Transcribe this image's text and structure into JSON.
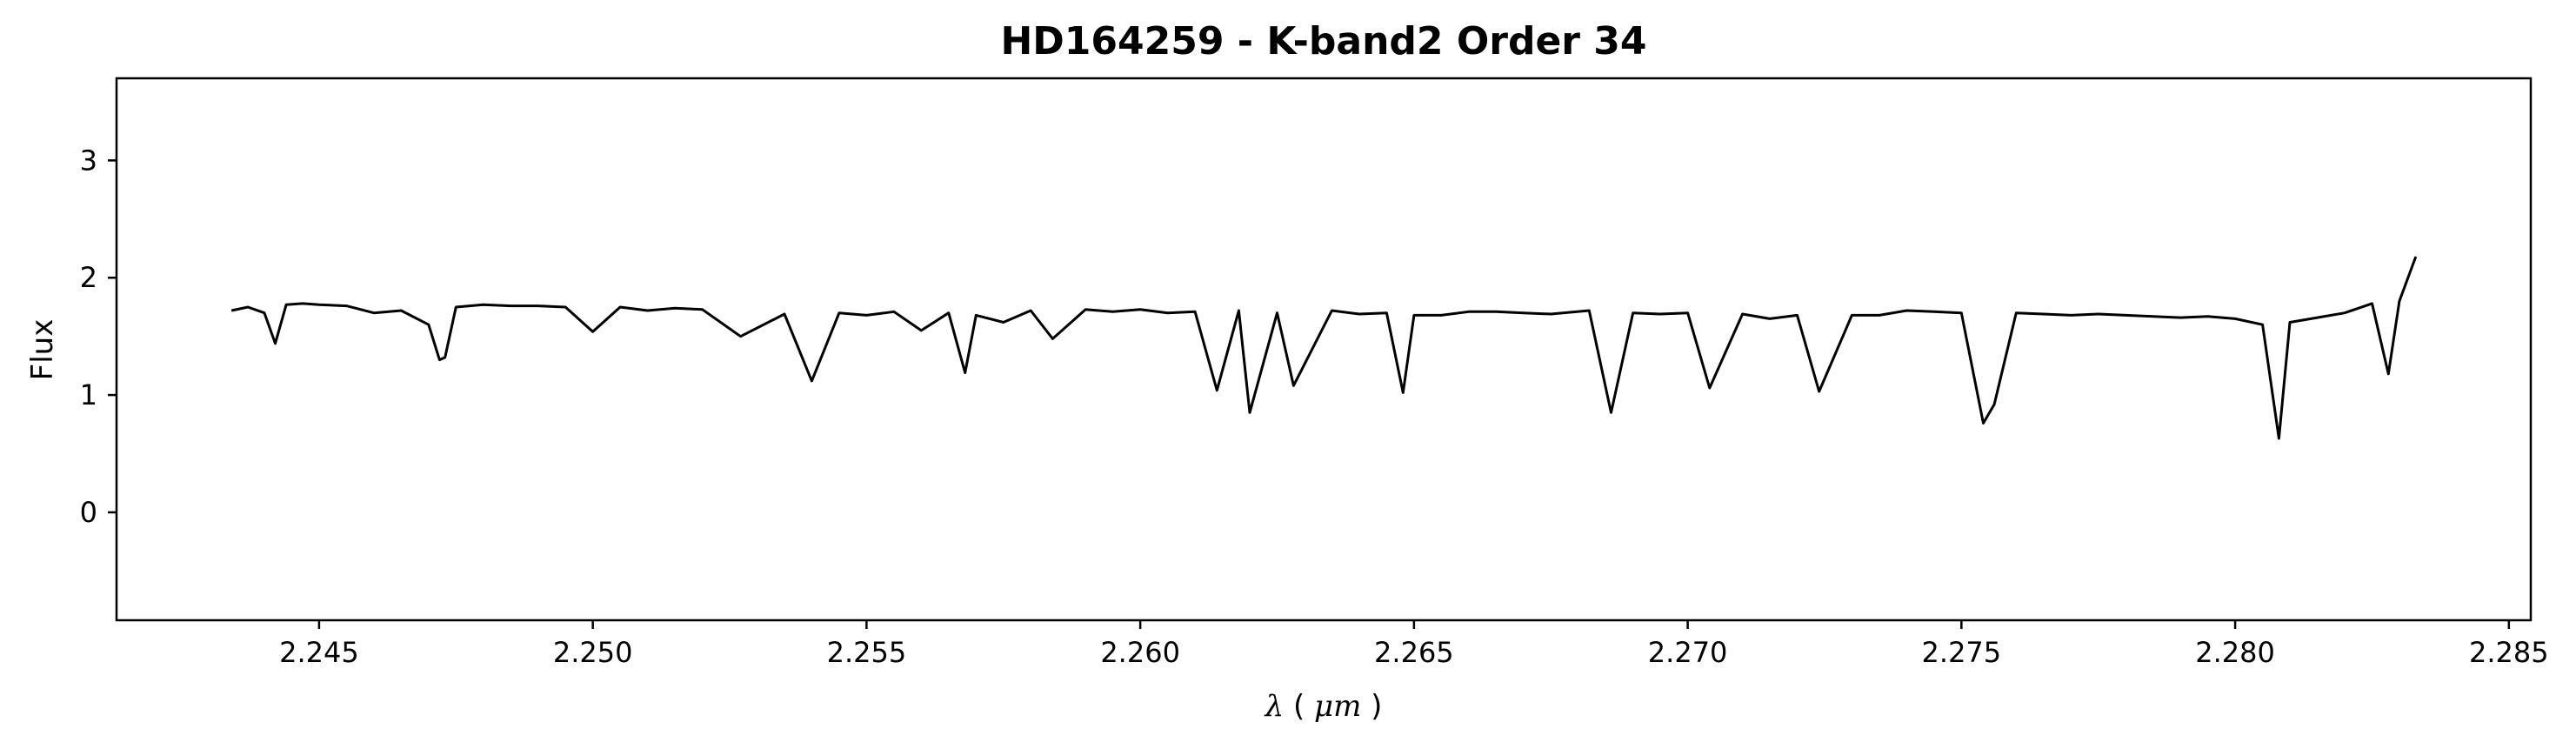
{
  "chart_data": {
    "type": "line",
    "title": "HD164259 - K-band2 Order 34",
    "xlabel": "λ (μm)",
    "xlabel_symbol": "λ",
    "xlabel_unit_open": "(",
    "xlabel_unit": "μm",
    "xlabel_unit_close": ")",
    "ylabel": "Flux",
    "xlim": [
      2.2413,
      2.2854
    ],
    "ylim": [
      -0.92,
      3.7
    ],
    "xticks": [
      2.245,
      2.25,
      2.255,
      2.26,
      2.265,
      2.27,
      2.275,
      2.28,
      2.285
    ],
    "xtick_labels": [
      "2.245",
      "2.250",
      "2.255",
      "2.260",
      "2.265",
      "2.270",
      "2.275",
      "2.280",
      "2.285"
    ],
    "yticks": [
      0,
      1,
      2,
      3
    ],
    "ytick_labels": [
      "0",
      "1",
      "2",
      "3"
    ],
    "grid": false,
    "line_color": "#000000",
    "series": [
      {
        "x": [
          2.2434,
          2.2437,
          2.244,
          2.2442,
          2.2444,
          2.2447,
          2.245,
          2.2455,
          2.246,
          2.2465,
          2.247,
          2.2472,
          2.2473,
          2.2475,
          2.248,
          2.2485,
          2.249,
          2.2495,
          2.25,
          2.2505,
          2.251,
          2.2515,
          2.252,
          2.2527,
          2.2535,
          2.254,
          2.2545,
          2.255,
          2.2555,
          2.256,
          2.2565,
          2.2568,
          2.257,
          2.2575,
          2.258,
          2.2584,
          2.259,
          2.2595,
          2.26,
          2.2605,
          2.261,
          2.2614,
          2.2618,
          2.262,
          2.2625,
          2.2628,
          2.2635,
          2.264,
          2.2645,
          2.2648,
          2.265,
          2.2655,
          2.266,
          2.2665,
          2.267,
          2.2675,
          2.2682,
          2.2686,
          2.269,
          2.2695,
          2.27,
          2.2704,
          2.271,
          2.2715,
          2.272,
          2.2724,
          2.273,
          2.2735,
          2.274,
          2.2745,
          2.275,
          2.2754,
          2.2756,
          2.276,
          2.2765,
          2.277,
          2.2775,
          2.278,
          2.2785,
          2.279,
          2.2795,
          2.28,
          2.2805,
          2.2808,
          2.281,
          2.2815,
          2.282,
          2.2825,
          2.2828,
          2.283,
          2.2833
        ],
        "values": [
          1.72,
          1.75,
          1.7,
          1.44,
          1.77,
          1.78,
          1.77,
          1.76,
          1.7,
          1.72,
          1.6,
          1.3,
          1.32,
          1.75,
          1.77,
          1.76,
          1.76,
          1.75,
          1.54,
          1.75,
          1.72,
          1.74,
          1.73,
          1.5,
          1.69,
          1.12,
          1.7,
          1.68,
          1.71,
          1.55,
          1.7,
          1.19,
          1.68,
          1.62,
          1.72,
          1.48,
          1.73,
          1.71,
          1.73,
          1.7,
          1.71,
          1.04,
          1.72,
          0.85,
          1.7,
          1.08,
          1.72,
          1.69,
          1.7,
          1.02,
          1.68,
          1.68,
          1.71,
          1.71,
          1.7,
          1.69,
          1.72,
          0.85,
          1.7,
          1.69,
          1.7,
          1.06,
          1.69,
          1.65,
          1.68,
          1.03,
          1.68,
          1.68,
          1.72,
          1.71,
          1.7,
          0.76,
          0.92,
          1.7,
          1.69,
          1.68,
          1.69,
          1.68,
          1.67,
          1.66,
          1.67,
          1.65,
          1.6,
          0.63,
          1.62,
          1.66,
          1.7,
          1.78,
          1.18,
          1.8,
          2.18
        ]
      }
    ]
  }
}
